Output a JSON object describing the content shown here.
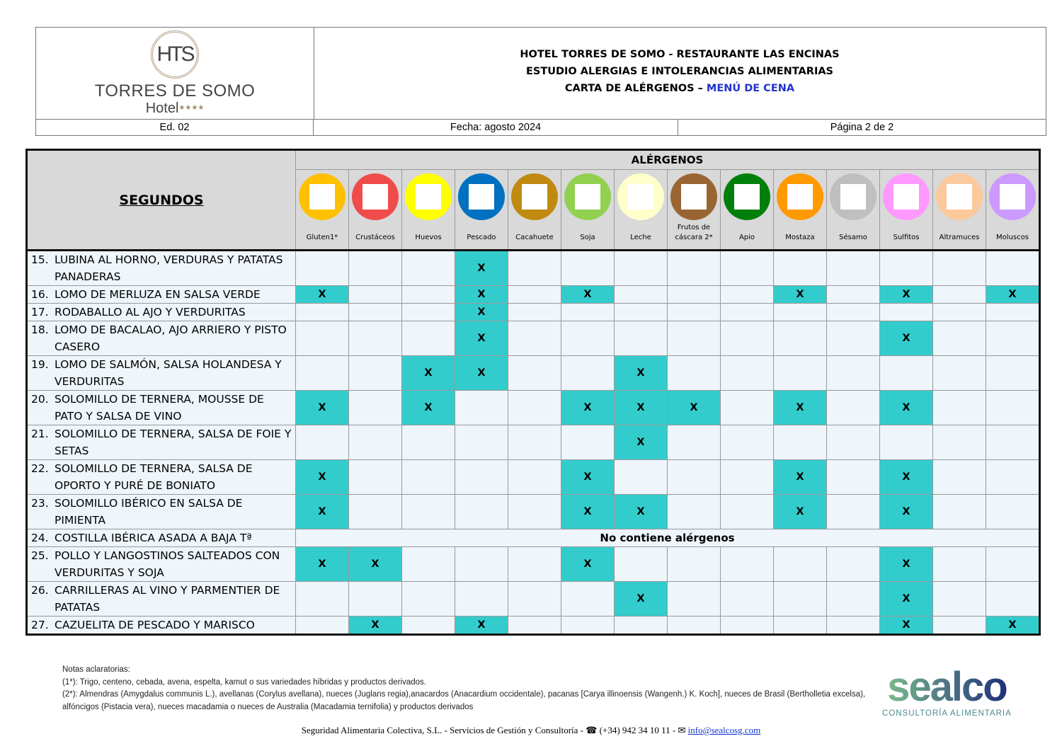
{
  "header": {
    "logo_seal": "HTS",
    "logo_name": "TORRES DE SOMO",
    "logo_hotel": "Hotel",
    "logo_stars": "★★★★",
    "title_1": "HOTEL TORRES DE SOMO - RESTAURANTE LAS ENCINAS",
    "title_2": "ESTUDIO ALERGIAS E INTOLERANCIAS ALIMENTARIAS",
    "title_3a": "CARTA DE ALÉRGENOS – ",
    "title_3b": "MENÚ DE CENA",
    "edition": "Ed. 02",
    "date": "Fecha: agosto 2024",
    "page": "Página 2 de 2"
  },
  "table": {
    "section": "SEGUNDOS",
    "allergens_title": "ALÉRGENOS",
    "allergens": [
      {
        "label": "Gluten1*",
        "color": "#ffc000"
      },
      {
        "label": "Crustáceos",
        "color": "#f04b4b"
      },
      {
        "label": "Huevos",
        "color": "#ffff00"
      },
      {
        "label": "Pescado",
        "color": "#0070c0"
      },
      {
        "label": "Cacahuete",
        "color": "#c08a10"
      },
      {
        "label": "Soja",
        "color": "#92d050"
      },
      {
        "label": "Leche",
        "color": "#ffffcc"
      },
      {
        "label": "Frutos de cáscara 2*",
        "color": "#996633"
      },
      {
        "label": "Apio",
        "color": "#00800a"
      },
      {
        "label": "Mostaza",
        "color": "#ff9900"
      },
      {
        "label": "Sésamo",
        "color": "#bfbfbf"
      },
      {
        "label": "Sulfitos",
        "color": "#ff99ff"
      },
      {
        "label": "Altramuces",
        "color": "#fcc99c"
      },
      {
        "label": "Moluscos",
        "color": "#cc99ff"
      }
    ],
    "mark": "X",
    "no_allergens": "No contiene alérgenos",
    "rows": [
      {
        "num": "15.",
        "name": "LUBINA AL HORNO, VERDURAS Y PATATAS PANADERAS",
        "x": [
          3
        ],
        "lines": 2
      },
      {
        "num": "16.",
        "name": "LOMO DE MERLUZA EN SALSA VERDE",
        "x": [
          0,
          3,
          5,
          9,
          11,
          13
        ],
        "lines": 1
      },
      {
        "num": "17.",
        "name": "RODABALLO AL AJO Y VERDURITAS",
        "x": [
          3
        ],
        "lines": 1
      },
      {
        "num": "18.",
        "name": "LOMO DE BACALAO, AJO ARRIERO Y PISTO CASERO",
        "x": [
          3,
          11
        ],
        "lines": 2
      },
      {
        "num": "19.",
        "name": "LOMO DE SALMÓN, SALSA HOLANDESA Y VERDURITAS",
        "x": [
          2,
          3,
          6
        ],
        "lines": 2
      },
      {
        "num": "20.",
        "name": "SOLOMILLO DE TERNERA, MOUSSE DE PATO Y SALSA DE VINO",
        "x": [
          0,
          2,
          5,
          6,
          7,
          9,
          11
        ],
        "lines": 2
      },
      {
        "num": "21.",
        "name": "SOLOMILLO DE TERNERA, SALSA DE FOIE Y SETAS",
        "x": [
          6
        ],
        "lines": 2
      },
      {
        "num": "22.",
        "name": "SOLOMILLO DE TERNERA, SALSA DE OPORTO Y PURÉ DE BONIATO",
        "x": [
          0,
          5,
          9,
          11
        ],
        "lines": 2
      },
      {
        "num": "23.",
        "name": "SOLOMILLO IBÉRICO EN SALSA DE PIMIENTA",
        "x": [
          0,
          5,
          6,
          9,
          11
        ],
        "lines": 2
      },
      {
        "num": "24.",
        "name": "COSTILLA IBÉRICA ASADA A BAJA Tª",
        "x": [],
        "none": true,
        "lines": 1
      },
      {
        "num": "25.",
        "name": "POLLO Y LANGOSTINOS SALTEADOS CON VERDURITAS Y SOJA",
        "x": [
          0,
          1,
          5,
          11
        ],
        "lines": 2
      },
      {
        "num": "26.",
        "name": "CARRILLERAS AL VINO Y PARMENTIER DE PATATAS",
        "x": [
          6,
          11
        ],
        "lines": 2
      },
      {
        "num": "27.",
        "name": "CAZUELITA DE PESCADO Y MARISCO",
        "x": [
          1,
          3,
          11,
          13
        ],
        "lines": 1
      }
    ]
  },
  "notes": {
    "title": "Notas aclaratorias:",
    "n1": "(1*): Trigo, centeno, cebada, avena, espelta, kamut o sus variedades híbridas y productos derivados.",
    "n2": "(2*): Almendras (Amygdalus communis L.), avellanas (Corylus avellana), nueces (Juglans regia),anacardos (Anacardium occidentale), pacanas [Carya illinoensis (Wangenh.) K. Koch], nueces de Brasil (Bertholletia excelsa), alfóncigos (Pistacia vera), nueces macadamia o nueces de Australia (Macadamia ternifolia) y productos derivados"
  },
  "footer": {
    "company": "Seguridad Alimentaria Colectiva, S.L. - Servicios de Gestión y Consultoría - ☎ (+34) 942 34 10 11 - ✉ ",
    "email": "info@sealcosg.com",
    "brand": "sealco",
    "brand_sub": "CONSULTORÍA ALIMENTARIA"
  }
}
